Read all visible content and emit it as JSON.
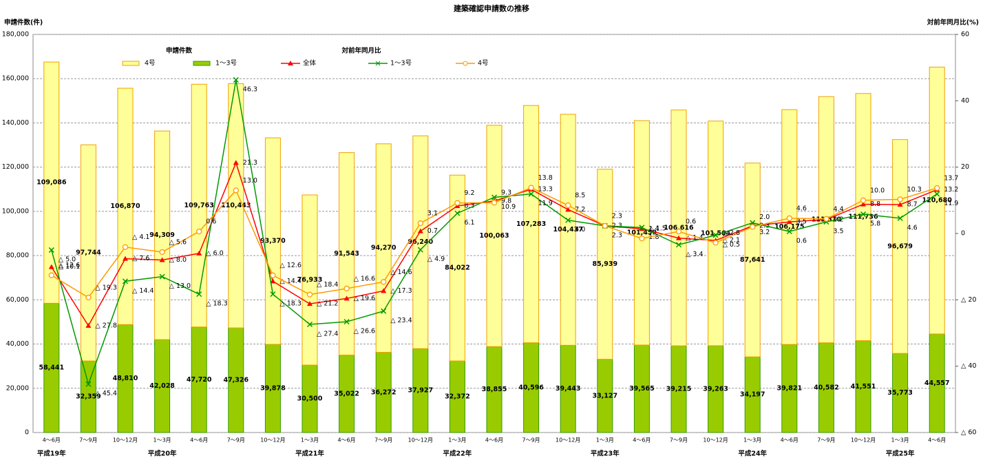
{
  "chart_data": {
    "type": "bar",
    "title": "建築確認申請数の推移",
    "y_label": "申請件数(件)",
    "y2_label": "対前年同月比(%)",
    "stacked": true,
    "grid": true,
    "legend_titles": [
      "申請件数",
      "対前年同月比"
    ],
    "categories": [
      "4～6月",
      "7～9月",
      "10～12月",
      "1～3月",
      "4～6月",
      "7～9月",
      "10～12月",
      "1～3月",
      "4～6月",
      "7～9月",
      "10～12月",
      "1～3月",
      "4～6月",
      "7～9月",
      "10～12月",
      "1～3月",
      "4～6月",
      "7～9月",
      "10～12月",
      "1～3月",
      "4～6月",
      "7～9月",
      "10～12月",
      "1～3月",
      "4～6月"
    ],
    "years": [
      "平成19年",
      null,
      null,
      "平成20年",
      null,
      null,
      null,
      "平成21年",
      null,
      null,
      null,
      "平成22年",
      null,
      null,
      null,
      "平成23年",
      null,
      null,
      null,
      "平成24年",
      null,
      null,
      null,
      "平成25年",
      null
    ],
    "ylim": [
      0,
      180000
    ],
    "yticks": [
      {
        "value": 0,
        "label": "0"
      },
      {
        "value": 20000,
        "label": "20,000"
      },
      {
        "value": 40000,
        "label": "40,000"
      },
      {
        "value": 60000,
        "label": "60,000"
      },
      {
        "value": 80000,
        "label": "80,000"
      },
      {
        "value": 100000,
        "label": "100,000"
      },
      {
        "value": 120000,
        "label": "120,000"
      },
      {
        "value": 140000,
        "label": "140,000"
      },
      {
        "value": 160000,
        "label": "160,000"
      },
      {
        "value": 180000,
        "label": "180,000"
      }
    ],
    "y2lim": [
      -60,
      60
    ],
    "y2ticks": [
      {
        "value": -60,
        "label": "△ 60"
      },
      {
        "value": -40,
        "label": "△ 40"
      },
      {
        "value": -20,
        "label": "△ 20"
      },
      0,
      20,
      40,
      60
    ],
    "series": [
      {
        "name": "4号",
        "type": "bar",
        "color": "#ffff99",
        "stroke": "#f0a000",
        "values": [
          109086,
          97744,
          106870,
          94309,
          109763,
          110443,
          93370,
          76933,
          91543,
          94270,
          96240,
          84022,
          100063,
          107283,
          104437,
          85939,
          101459,
          106616,
          101564,
          87641,
          106175,
          111310,
          111736,
          96679,
          120680
        ],
        "value_labels": [
          "109,086",
          "97,744",
          "106,870",
          "94,309",
          "109,763",
          "110,443",
          "93,370",
          "76,933",
          "91,543",
          "94,270",
          "96,240",
          "84,022",
          "100,063",
          "107,283",
          "104,437",
          "85,939",
          "101,459",
          "106,616",
          "101,564",
          "87,641",
          "106,175",
          "111,310",
          "111,736",
          "96,679",
          "120,680"
        ]
      },
      {
        "name": "1～3号",
        "type": "bar",
        "color": "#99cc00",
        "stroke": "#339900",
        "values": [
          58441,
          32359,
          48810,
          42028,
          47720,
          47326,
          39878,
          30500,
          35022,
          36272,
          37927,
          32372,
          38855,
          40596,
          39443,
          33127,
          39565,
          39215,
          39263,
          34197,
          39821,
          40582,
          41551,
          35773,
          44557
        ],
        "value_labels": [
          "58,441",
          "32,359",
          "48,810",
          "42,028",
          "47,720",
          "47,326",
          "39,878",
          "30,500",
          "35,022",
          "36,272",
          "37,927",
          "32,372",
          "38,855",
          "40,596",
          "39,443",
          "33,127",
          "39,565",
          "39,215",
          "39,263",
          "34,197",
          "39,821",
          "40,582",
          "41,551",
          "35,773",
          "44,557"
        ]
      },
      {
        "name": "全体",
        "type": "line",
        "axis": "y2",
        "color": "#ff0000",
        "marker": "triangle",
        "values": [
          -10.1,
          -27.8,
          -7.6,
          -8.0,
          -6.0,
          21.3,
          -14.4,
          -21.2,
          -19.6,
          -17.3,
          0.7,
          8.3,
          9.8,
          13.3,
          7.2,
          2.3,
          1.4,
          -1.4,
          -2.1,
          2.3,
          3.5,
          4.2,
          8.8,
          8.7,
          13.2
        ],
        "value_labels": [
          "△ 10.1",
          "△ 27.8",
          "△ 7.6",
          "△ 8.0",
          "△ 6.0",
          "21.3",
          "△ 14.4",
          "△ 21.2",
          "△ 19.6",
          "△ 17.3",
          "0.7",
          "8.3",
          "9.8",
          "13.3",
          "7.2",
          "2.3",
          "1.4",
          "△ 1.4",
          "△ 2.1",
          "2.3",
          "3.5",
          "4.2",
          "8.8",
          "8.7",
          "13.2"
        ]
      },
      {
        "name": "1～3号",
        "type": "line",
        "axis": "y2",
        "color": "#009900",
        "marker": "x",
        "values": [
          -5.0,
          -45.4,
          -14.4,
          -13.0,
          -18.3,
          46.3,
          -18.3,
          -27.4,
          -26.6,
          -23.4,
          -4.9,
          6.1,
          10.9,
          11.9,
          4.0,
          2.3,
          1.8,
          -3.4,
          -0.5,
          3.2,
          0.6,
          3.5,
          5.8,
          4.6,
          11.9
        ],
        "value_labels": [
          "△ 5.0",
          "△ 45.4",
          "△ 14.4",
          "△ 13.0",
          "△ 18.3",
          "46.3",
          "△ 18.3",
          "△ 27.4",
          "△ 26.6",
          "△ 23.4",
          "△ 4.9",
          "6.1",
          "10.9",
          "11.9",
          "4.0",
          "2.3",
          "1.8",
          "△ 3.4",
          "△ 0.5",
          "3.2",
          "0.6",
          "3.5",
          "5.8",
          "4.6",
          "11.9"
        ]
      },
      {
        "name": "4号",
        "type": "line",
        "axis": "y2",
        "color": "#ff9900",
        "marker": "circle",
        "values": [
          -12.6,
          -19.3,
          -4.1,
          -5.6,
          0.6,
          13.0,
          -12.6,
          -18.4,
          -16.6,
          -14.6,
          3.1,
          9.2,
          9.3,
          13.8,
          8.5,
          2.3,
          -1.5,
          0.6,
          -2.8,
          2.0,
          4.6,
          4.4,
          10.0,
          10.3,
          13.7
        ],
        "value_labels": [
          "△ 12.6",
          "△ 19.3",
          "△ 4.1",
          "△ 5.6",
          "0.6",
          "13.0",
          "△ 12.6",
          "△ 18.4",
          "△ 16.6",
          "△ 14.6",
          "3.1",
          "9.2",
          "9.3",
          "13.8",
          "8.5",
          "2.3",
          "△ 1.5",
          "0.6",
          "△ 2.8",
          "2.0",
          "4.6",
          "4.4",
          "10.0",
          "10.3",
          "13.7"
        ]
      }
    ]
  }
}
